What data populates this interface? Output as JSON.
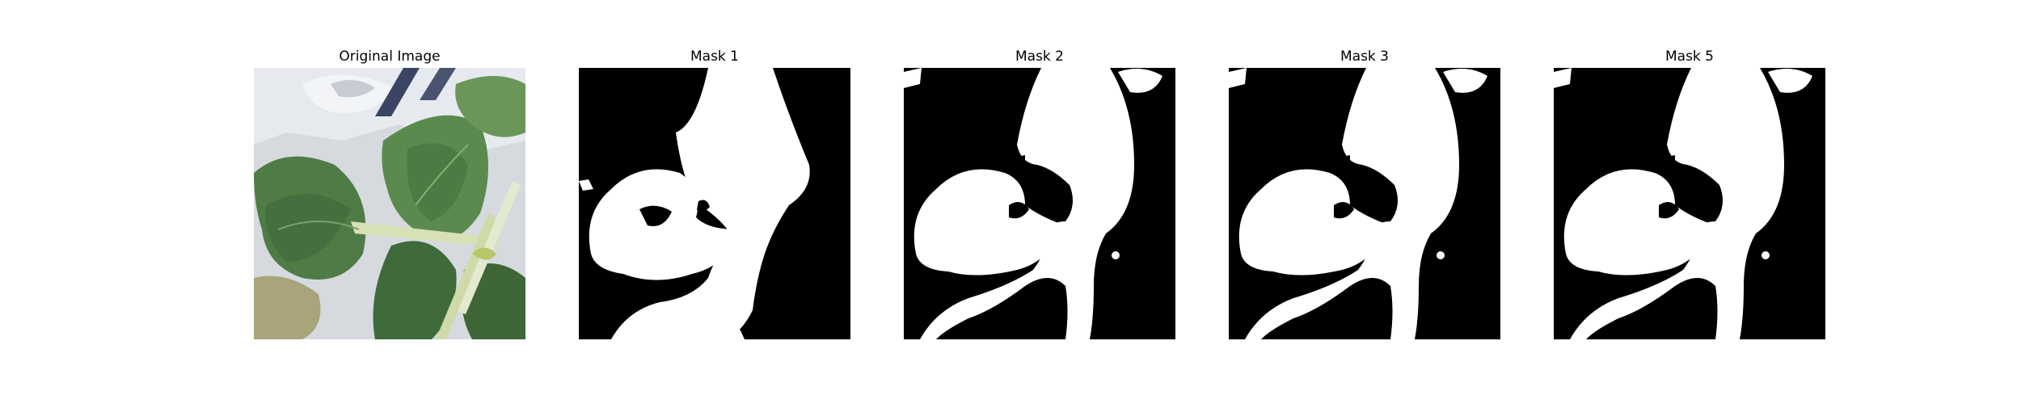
{
  "figure": {
    "panels": [
      {
        "title": "Original Image",
        "kind": "photo",
        "subject": "green leafy plant with pale stems"
      },
      {
        "title": "Mask 1",
        "kind": "binary-mask",
        "variant": "mask-1"
      },
      {
        "title": "Mask 2",
        "kind": "binary-mask",
        "variant": "mask-2"
      },
      {
        "title": "Mask 3",
        "kind": "binary-mask",
        "variant": "mask-3"
      },
      {
        "title": "Mask 5",
        "kind": "binary-mask",
        "variant": "mask-5"
      }
    ],
    "colors": {
      "background": "#ffffff",
      "mask_background": "#000000",
      "mask_foreground": "#ffffff",
      "leaf_dark": "#3f6b3b",
      "leaf_mid": "#5f8a4d",
      "stem": "#d8e2b8",
      "sky": "#dfe3e8"
    }
  }
}
